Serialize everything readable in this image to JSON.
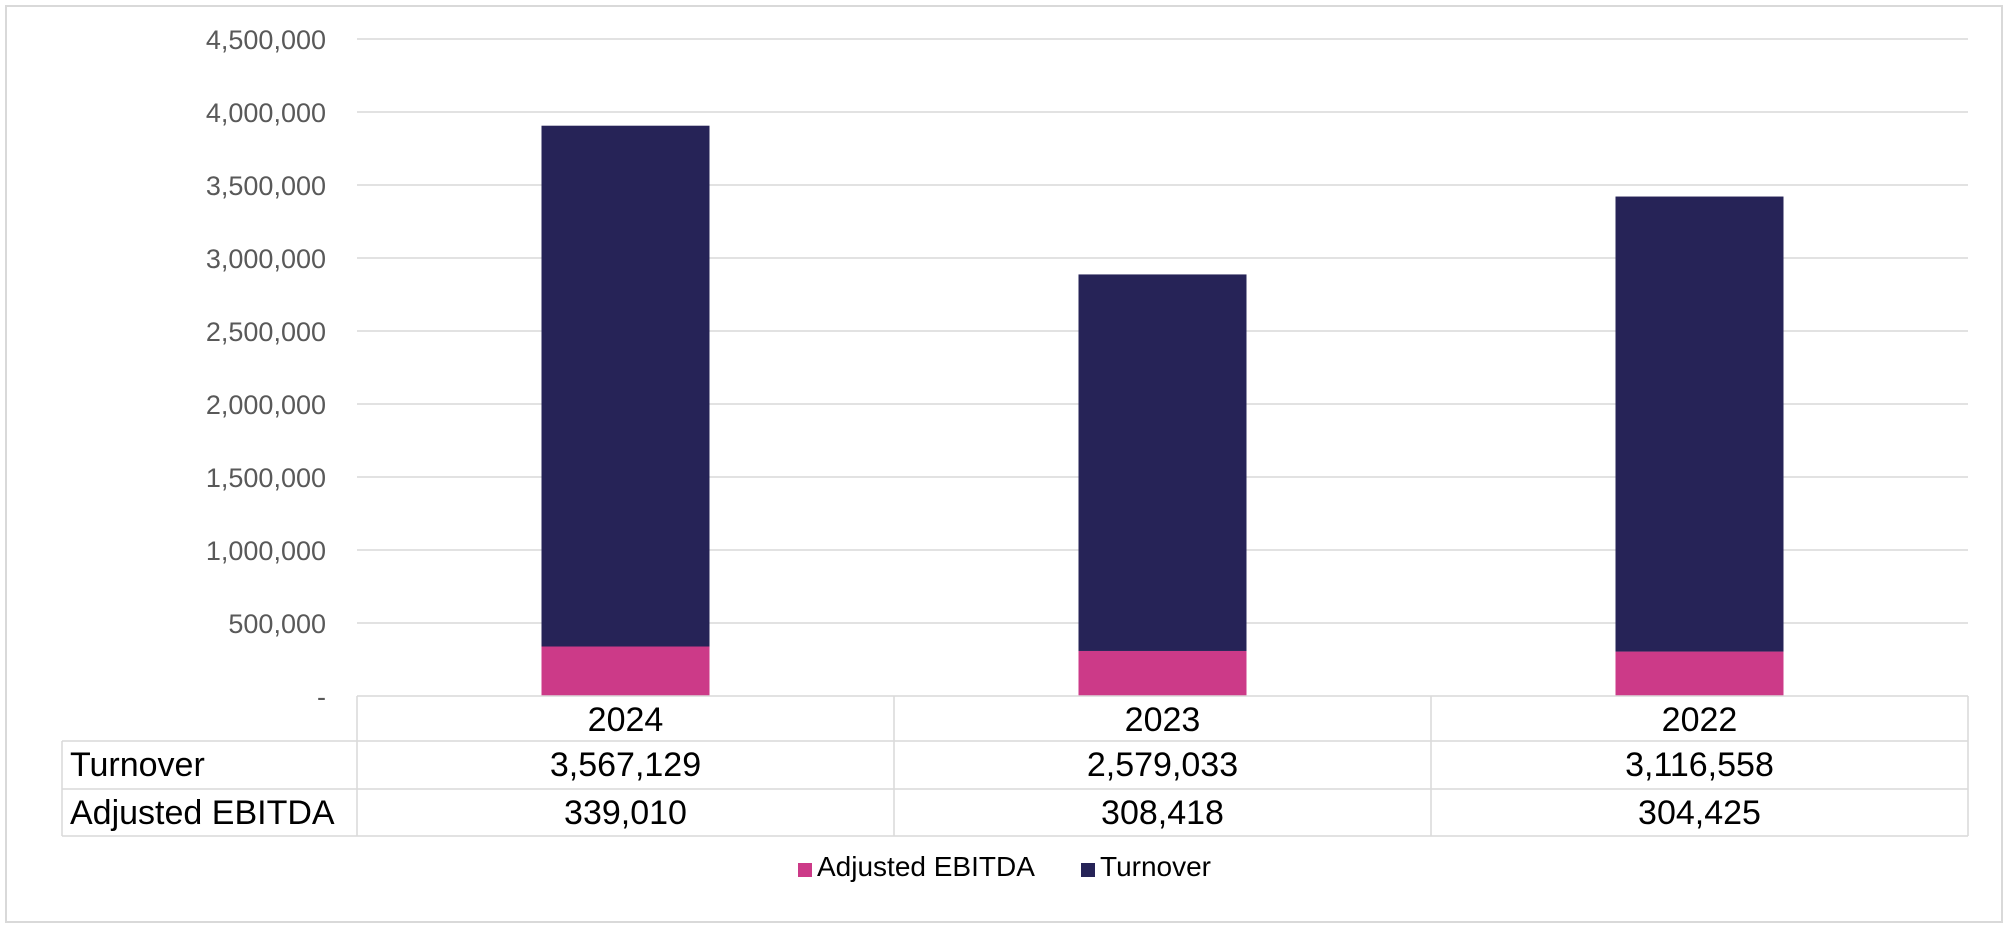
{
  "chart_data": {
    "type": "bar",
    "stacked": true,
    "categories": [
      "2024",
      "2023",
      "2022"
    ],
    "series": [
      {
        "name": "Adjusted EBITDA",
        "values": [
          339010,
          308418,
          304425
        ],
        "display": [
          "339,010",
          "308,418",
          "304,425"
        ]
      },
      {
        "name": "Turnover",
        "values": [
          3567129,
          2579033,
          3116558
        ],
        "display": [
          "3,567,129",
          "2,579,033",
          "3,116,558"
        ]
      }
    ],
    "table_rows": [
      {
        "label": "Turnover",
        "values": [
          "3,567,129",
          "2,579,033",
          "3,116,558"
        ]
      },
      {
        "label": "Adjusted EBITDA",
        "values": [
          "339,010",
          "308,418",
          "304,425"
        ]
      }
    ],
    "ylim": [
      0,
      4500000
    ],
    "yticks": [
      "-",
      "500,000",
      "1,000,000",
      "1,500,000",
      "2,000,000",
      "2,500,000",
      "3,000,000",
      "3,500,000",
      "4,000,000",
      "4,500,000"
    ],
    "ytick_values": [
      0,
      500000,
      1000000,
      1500000,
      2000000,
      2500000,
      3000000,
      3500000,
      4000000,
      4500000
    ],
    "grid": true,
    "legend_position": "bottom",
    "colors": {
      "Adjusted EBITDA": "#cc3a88",
      "Turnover": "#262357",
      "grid": "#d9d9d9",
      "text": "#595959",
      "table_text": "#000000"
    }
  }
}
